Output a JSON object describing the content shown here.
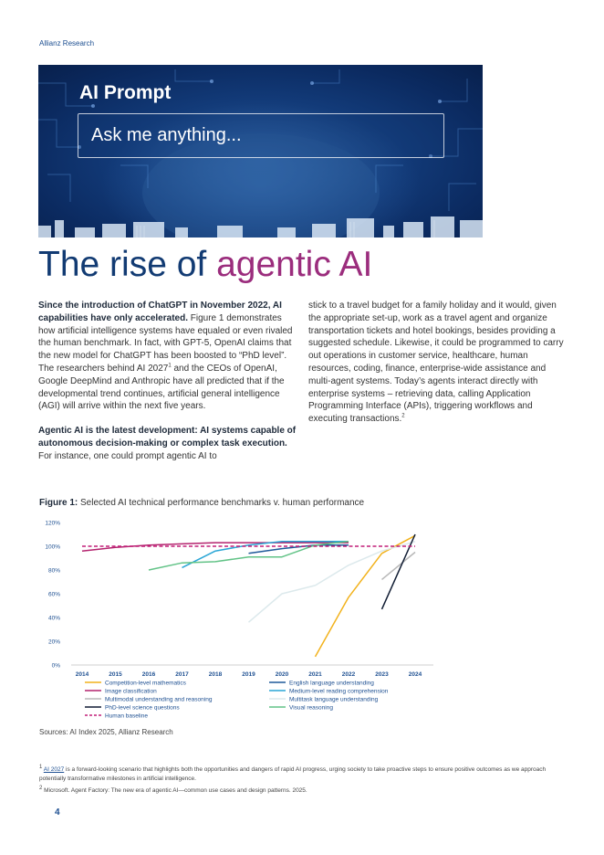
{
  "header": {
    "brand": "Allianz Research"
  },
  "hero": {
    "title": "AI Prompt",
    "prompt_text": "Ask me anything..."
  },
  "title": {
    "part1": "The rise of ",
    "part2": "agentic AI"
  },
  "col1": {
    "p1_bold": "Since the introduction of ChatGPT in November 2022, AI capabilities have only accelerated.",
    "p1_text_a": " Figure 1 demonstrates how artificial intelligence systems have equaled or even rivaled the human benchmark. In fact, with GPT-5, OpenAI claims that the new model for ChatGPT has been boosted to “PhD level”. The researchers behind AI 2027",
    "p1_sup": "1",
    "p1_text_b": " and the CEOs of OpenAI, Google DeepMind and Anthropic have all predicted that if the developmental trend continues, artificial general intelligence (AGI) will arrive within the next five years.",
    "p2_bold": "Agentic AI is the latest development: AI systems capable of autonomous decision-making or complex task execution.",
    "p2_text": " For instance, one could prompt agentic AI to"
  },
  "col2": {
    "text": "stick to a travel budget for a family holiday and it would, given the appropriate set-up, work as a travel agent and organize transportation tickets and hotel bookings, besides providing a suggested schedule. Likewise, it could be programmed to carry out operations in customer service, healthcare, human resources, coding, finance, enterprise-wide assistance and multi-agent systems. Today’s agents interact directly with enterprise systems – retrieving data, calling Application Programming Interface (APIs), triggering workflows and executing transactions.",
    "sup": "2"
  },
  "figure": {
    "label": "Figure 1:",
    "caption": " Selected AI technical performance benchmarks v. human performance"
  },
  "chart_data": {
    "type": "line",
    "title": "",
    "xlim": [
      2014,
      2024
    ],
    "ylim": [
      0,
      120
    ],
    "grid": false,
    "legend_position": "bottom",
    "x_ticks": [
      "2014",
      "2015",
      "2016",
      "2017",
      "2018",
      "2019",
      "2020",
      "2021",
      "2022",
      "2023",
      "2024"
    ],
    "y_ticks": [
      "0%",
      "20%",
      "40%",
      "60%",
      "80%",
      "100%",
      "120%"
    ],
    "series": [
      {
        "name": "Competition-level mathematics",
        "color": "#f2b21c",
        "dashed": false,
        "points": [
          [
            2021,
            7
          ],
          [
            2022,
            57
          ],
          [
            2023,
            94
          ],
          [
            2024,
            109
          ]
        ]
      },
      {
        "name": "English language understanding",
        "color": "#1f5a9a",
        "dashed": false,
        "points": [
          [
            2019,
            94
          ],
          [
            2020,
            98
          ],
          [
            2021,
            101
          ],
          [
            2022,
            101
          ]
        ]
      },
      {
        "name": "Image classification",
        "color": "#b4236e",
        "dashed": false,
        "points": [
          [
            2014,
            96
          ],
          [
            2015,
            99
          ],
          [
            2016,
            101
          ],
          [
            2017,
            102
          ],
          [
            2018,
            103
          ],
          [
            2019,
            103
          ],
          [
            2020,
            103
          ],
          [
            2021,
            103
          ],
          [
            2022,
            103
          ]
        ]
      },
      {
        "name": "Medium-level reading comprehension",
        "color": "#2aa6d6",
        "dashed": false,
        "points": [
          [
            2017,
            82
          ],
          [
            2018,
            96
          ],
          [
            2019,
            101
          ],
          [
            2020,
            104
          ],
          [
            2021,
            104
          ],
          [
            2022,
            104
          ]
        ]
      },
      {
        "name": "Multimodal understanding and reasoning",
        "color": "#b8b8b8",
        "dashed": false,
        "points": [
          [
            2023,
            72
          ],
          [
            2024,
            95
          ]
        ]
      },
      {
        "name": "Multitask language understanding",
        "color": "#dce9ec",
        "dashed": false,
        "points": [
          [
            2019,
            36
          ],
          [
            2020,
            60
          ],
          [
            2021,
            67
          ],
          [
            2022,
            84
          ],
          [
            2023,
            96
          ],
          [
            2024,
            104
          ]
        ]
      },
      {
        "name": "PhD-level science questions",
        "color": "#101c33",
        "dashed": false,
        "points": [
          [
            2023,
            47
          ],
          [
            2024,
            110
          ]
        ]
      },
      {
        "name": "Visual reasoning",
        "color": "#62c387",
        "dashed": false,
        "points": [
          [
            2016,
            80
          ],
          [
            2017,
            86
          ],
          [
            2018,
            87
          ],
          [
            2019,
            91
          ],
          [
            2020,
            91
          ],
          [
            2021,
            101
          ],
          [
            2022,
            104
          ]
        ]
      },
      {
        "name": "Human baseline",
        "color": "#c21f78",
        "dashed": true,
        "points": [
          [
            2014,
            100
          ],
          [
            2024,
            100
          ]
        ]
      }
    ]
  },
  "sources": "Sources: AI Index 2025, Allianz Research",
  "footnotes": {
    "fn1_mark": "1",
    "fn1_link": "AI 2027",
    "fn1_text": " is a forward-looking scenario that highlights both the opportunities and dangers of rapid AI progress, urging society to take proactive steps to ensure positive outcomes as we approach potentially transformative milestones in artificial intelligence.",
    "fn2_mark": "2",
    "fn2_text": " Microsoft. Agent Factory: The new era of agentic AI—common use cases and design patterns. 2025."
  },
  "page_number": "4"
}
